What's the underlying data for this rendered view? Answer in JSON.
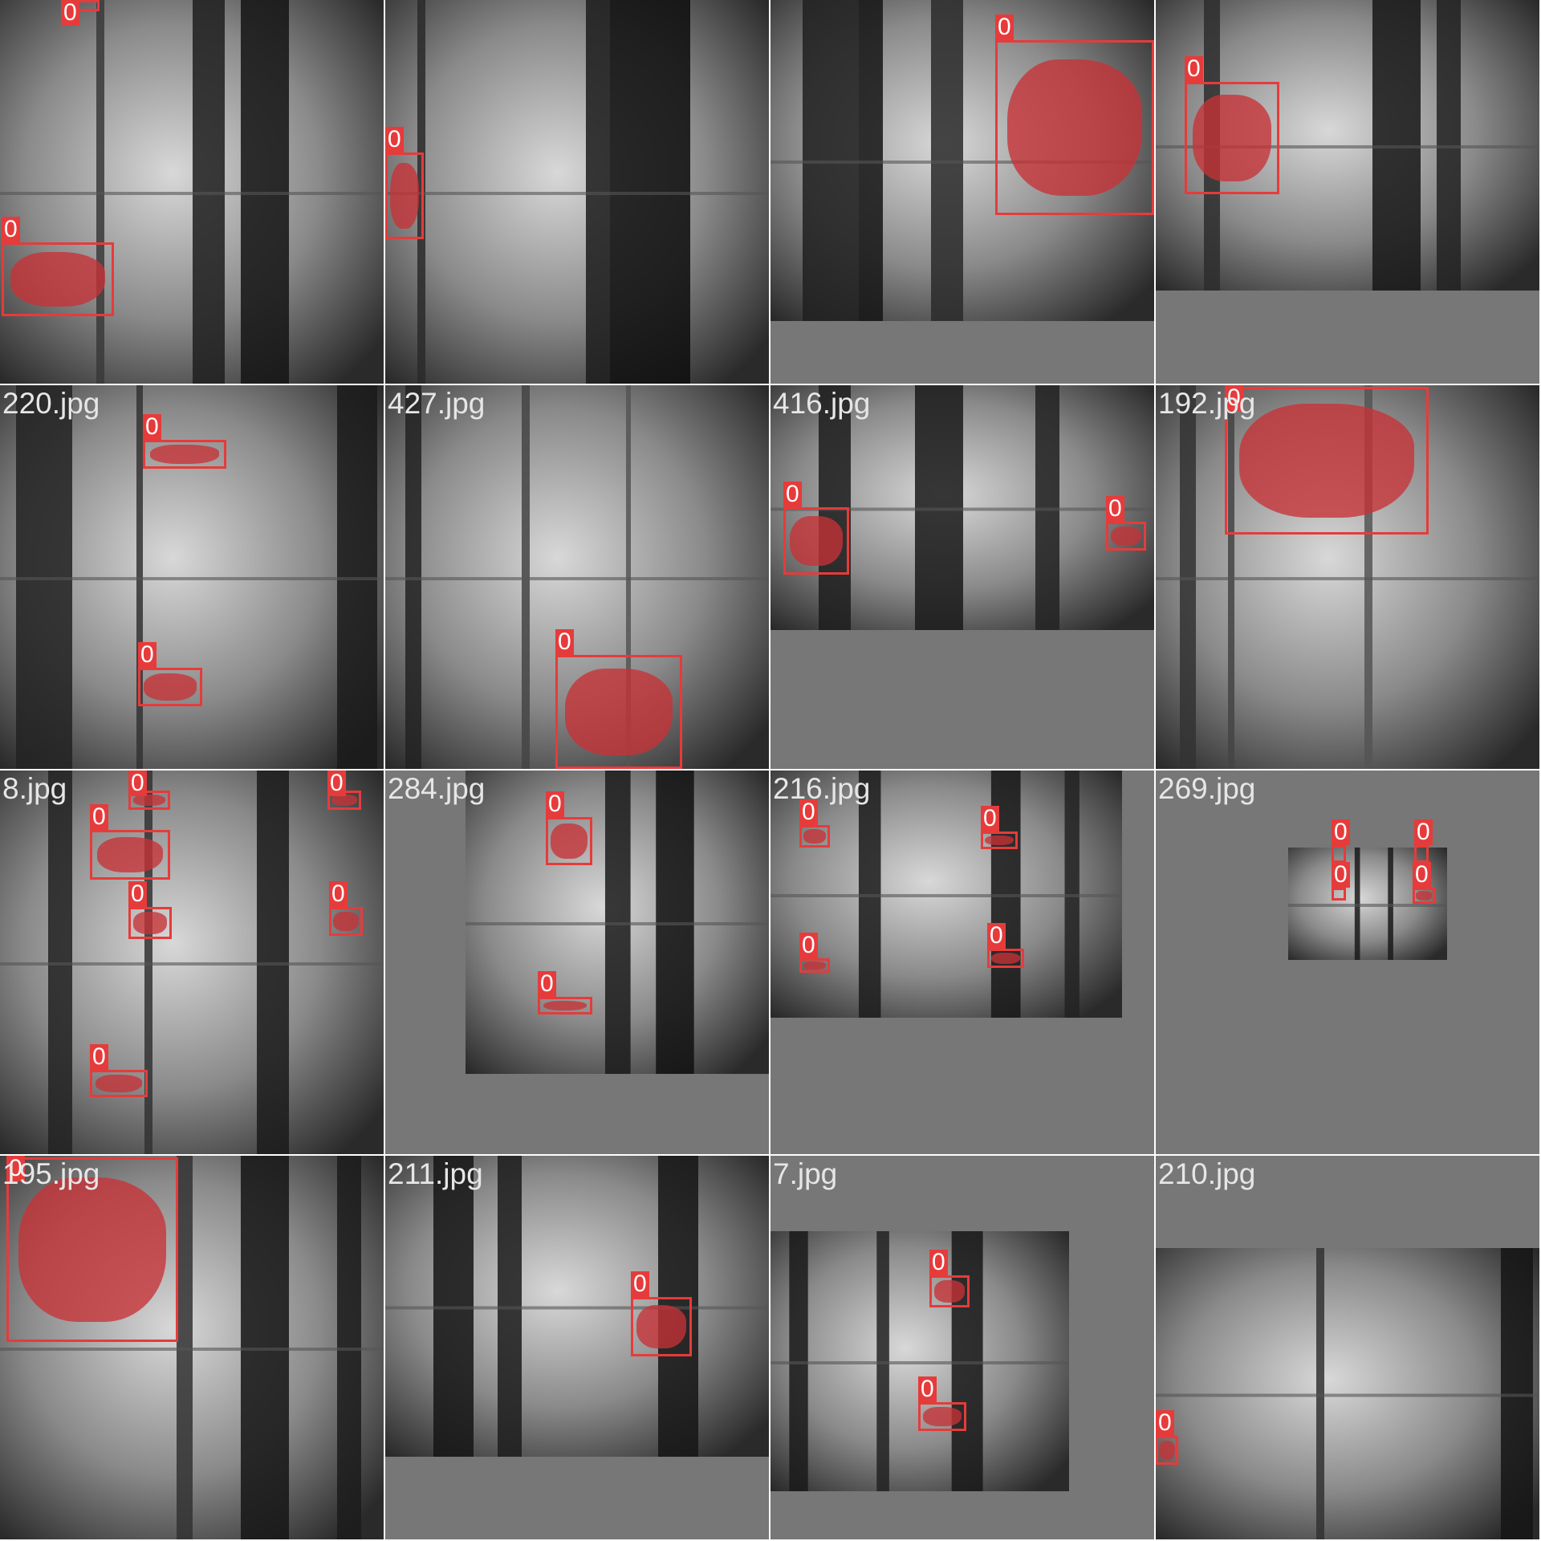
{
  "grid": {
    "tiles": [
      {
        "filename": "",
        "label": "0"
      },
      {
        "filename": "",
        "label": "0"
      },
      {
        "filename": "",
        "label": "0"
      },
      {
        "filename": "",
        "label": "0"
      },
      {
        "filename": "220.jpg",
        "label": "0"
      },
      {
        "filename": "427.jpg",
        "label": "0"
      },
      {
        "filename": "416.jpg",
        "label": "0"
      },
      {
        "filename": "192.jpg",
        "label": "0"
      },
      {
        "filename": "8.jpg",
        "label": "0"
      },
      {
        "filename": "284.jpg",
        "label": "0"
      },
      {
        "filename": "216.jpg",
        "label": "0"
      },
      {
        "filename": "269.jpg",
        "label": "0"
      },
      {
        "filename": "195.jpg",
        "label": "0"
      },
      {
        "filename": "211.jpg",
        "label": "0"
      },
      {
        "filename": "7.jpg",
        "label": "0"
      },
      {
        "filename": "210.jpg",
        "label": "0"
      }
    ]
  },
  "colors": {
    "box": "#e63b3b",
    "mask": "#c83237",
    "label_text": "#ffffff",
    "filename_text": "#e6e6e6",
    "padding_gray": "#777777"
  }
}
